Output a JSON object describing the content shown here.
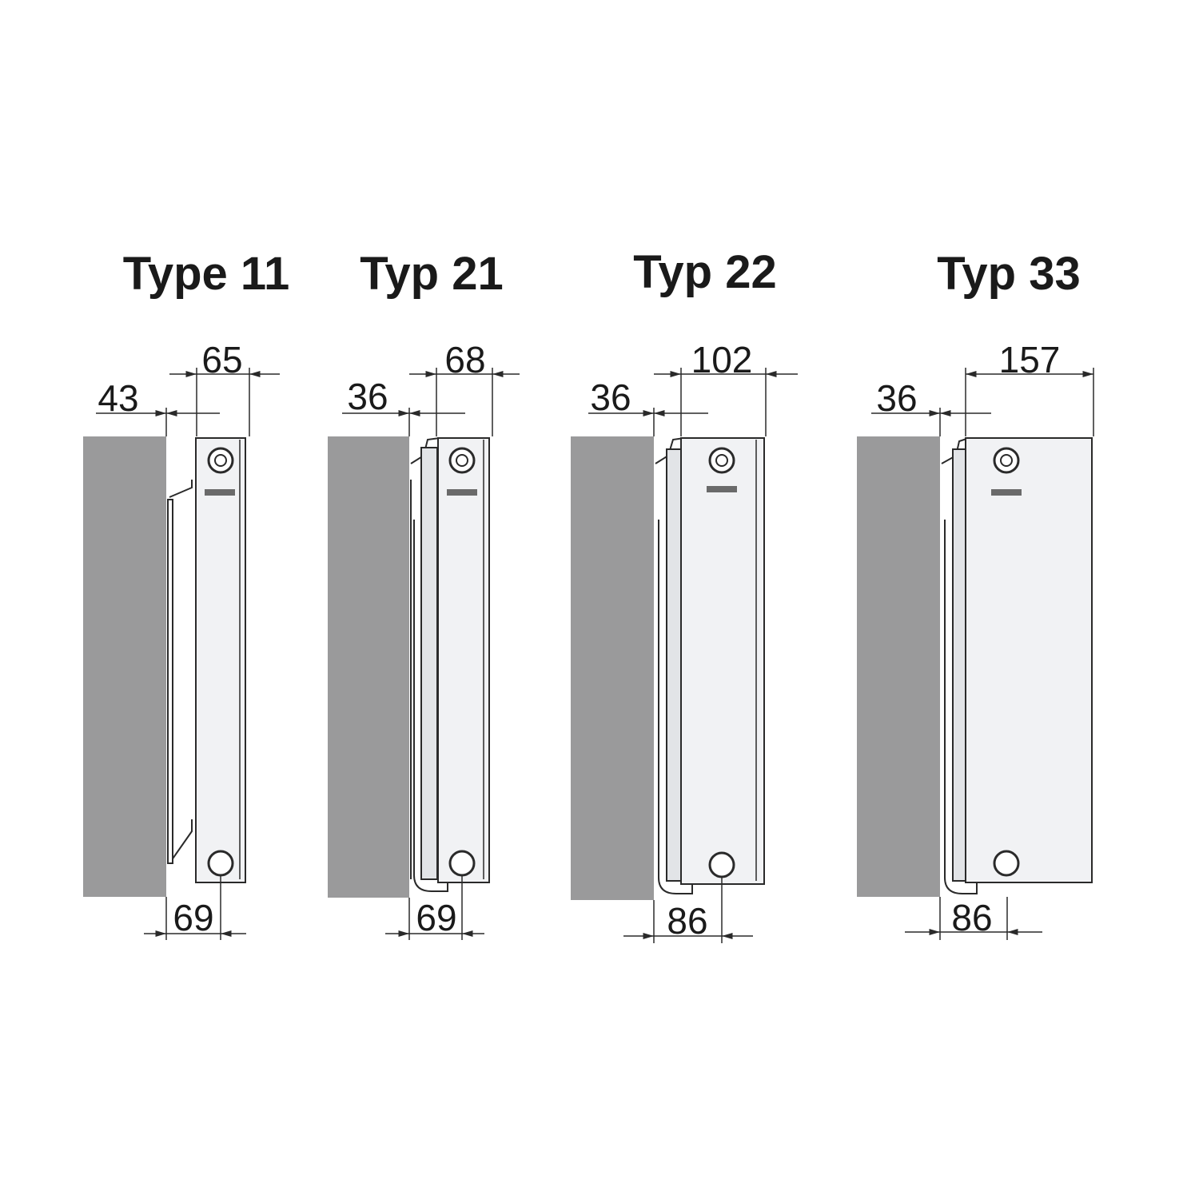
{
  "colors": {
    "wall": "#9a9a9b",
    "panel": "#f1f2f4",
    "line": "#2a2a2a",
    "text": "#1a1a1a"
  },
  "radiators": [
    {
      "id": "type-11",
      "title": "Type 11",
      "wall_distance": "43",
      "depth": "65",
      "bottom_distance": "69"
    },
    {
      "id": "typ-21",
      "title": "Typ 21",
      "wall_distance": "36",
      "depth": "68",
      "bottom_distance": "69"
    },
    {
      "id": "typ-22",
      "title": "Typ 22",
      "wall_distance": "36",
      "depth": "102",
      "bottom_distance": "86"
    },
    {
      "id": "typ-33",
      "title": "Typ 33",
      "wall_distance": "36",
      "depth": "157",
      "bottom_distance": "86"
    }
  ]
}
